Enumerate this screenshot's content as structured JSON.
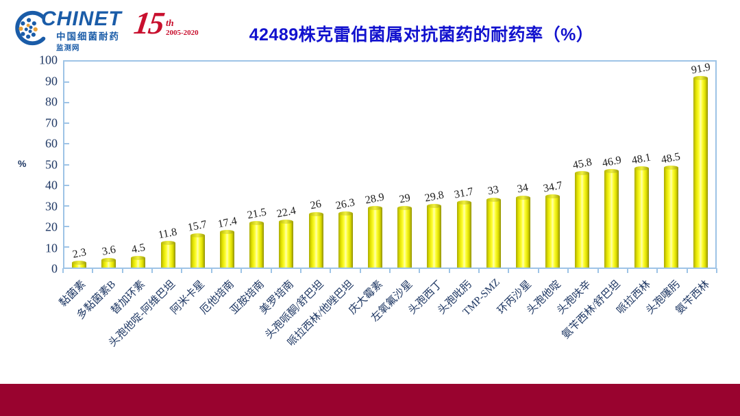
{
  "header": {
    "logo": {
      "brand": "CHINET",
      "line1": "中国细菌耐药",
      "line2": "监测网"
    },
    "anniversary": {
      "number": "15",
      "suffix": "th",
      "years": "2005-2020"
    },
    "title": "42489株克雷伯菌属对抗菌药的耐药率（%）"
  },
  "chart_data": {
    "type": "bar",
    "title": "42489株克雷伯菌属对抗菌药的耐药率（%）",
    "xlabel": "",
    "ylabel": "%",
    "ylim": [
      0,
      100
    ],
    "yticks": [
      0,
      10,
      20,
      30,
      40,
      50,
      60,
      70,
      80,
      90,
      100
    ],
    "grid": false,
    "legend_position": "none",
    "categories": [
      "黏菌素",
      "多黏菌素B",
      "替加环素",
      "头孢他啶-阿维巴坦",
      "阿米卡星",
      "厄他培南",
      "亚胺培南",
      "美罗培南",
      "头孢哌酮/舒巴坦",
      "哌拉西林/他唑巴坦",
      "庆大霉素",
      "左氧氟沙星",
      "头孢西丁",
      "头孢吡肟",
      "TMP-SMZ",
      "环丙沙星",
      "头孢他啶",
      "头孢呋辛",
      "氨苄西林/舒巴坦",
      "哌拉西林",
      "头孢噻肟",
      "氨苄西林"
    ],
    "values": [
      2.3,
      3.6,
      4.5,
      11.8,
      15.7,
      17.4,
      21.5,
      22.4,
      26,
      26.3,
      28.9,
      29,
      29.8,
      31.7,
      33,
      34,
      34.7,
      45.8,
      46.9,
      48.1,
      48.5,
      91.9
    ]
  },
  "colors": {
    "title": "#1212CE",
    "axis_border": "#9DC3E6",
    "tick_label": "#1F3864",
    "bar_fill": "#F0F000",
    "value_label": "#1A1A1A",
    "footer_bar": "#99032F",
    "logo_blue": "#1A5CA8",
    "anniversary_red": "#C8102E"
  }
}
